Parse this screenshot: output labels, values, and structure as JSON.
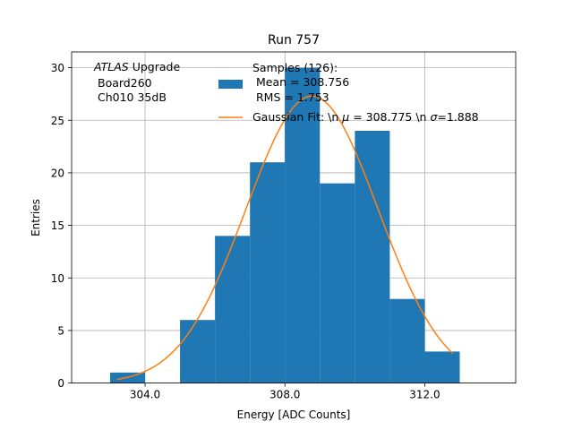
{
  "chart_data": {
    "type": "bar",
    "title": "Run 757",
    "xlabel": "Energy [ADC Counts]",
    "ylabel": "Entries",
    "xlim": [
      301.9,
      314.6
    ],
    "ylim": [
      0,
      31.5
    ],
    "grid": true,
    "xticks": [
      304.0,
      308.0,
      312.0
    ],
    "xtick_labels": [
      "304.0",
      "308.0",
      "312.0"
    ],
    "yticks": [
      0,
      5,
      10,
      15,
      20,
      25,
      30
    ],
    "ytick_labels": [
      "0",
      "5",
      "10",
      "15",
      "20",
      "25",
      "30"
    ],
    "bar_color": "#1f77b4",
    "fit_color": "#ff7f0e",
    "bins": [
      {
        "x0": 303.0,
        "x1": 304.0,
        "count": 1
      },
      {
        "x0": 304.0,
        "x1": 305.0,
        "count": 0
      },
      {
        "x0": 305.0,
        "x1": 306.0,
        "count": 6
      },
      {
        "x0": 306.0,
        "x1": 307.0,
        "count": 14
      },
      {
        "x0": 307.0,
        "x1": 308.0,
        "count": 21
      },
      {
        "x0": 308.0,
        "x1": 309.0,
        "count": 30
      },
      {
        "x0": 309.0,
        "x1": 310.0,
        "count": 19
      },
      {
        "x0": 310.0,
        "x1": 311.0,
        "count": 24
      },
      {
        "x0": 311.0,
        "x1": 312.0,
        "count": 8
      },
      {
        "x0": 312.0,
        "x1": 313.0,
        "count": 3
      }
    ],
    "fit": {
      "type": "gaussian",
      "amplitude": 27.3,
      "mu": 308.775,
      "sigma": 1.888,
      "x_range": [
        303.2,
        312.8
      ]
    },
    "annotation": {
      "atlas": "ATLAS",
      "upgrade": " Upgrade",
      "line2": "Board260",
      "line3": "Ch010 35dB"
    },
    "legend": {
      "placement": "top-right",
      "hist_line1": "Samples (126):",
      "hist_line2": "Mean = 308.756",
      "hist_line3": "RMS = 1.753",
      "fit_prefix": "Gaussian Fit: \\n ",
      "fit_mu_symbol": "μ",
      "fit_mid": " = 308.775 \\n ",
      "fit_sigma_symbol": "σ",
      "fit_suffix": "=1.888"
    }
  }
}
